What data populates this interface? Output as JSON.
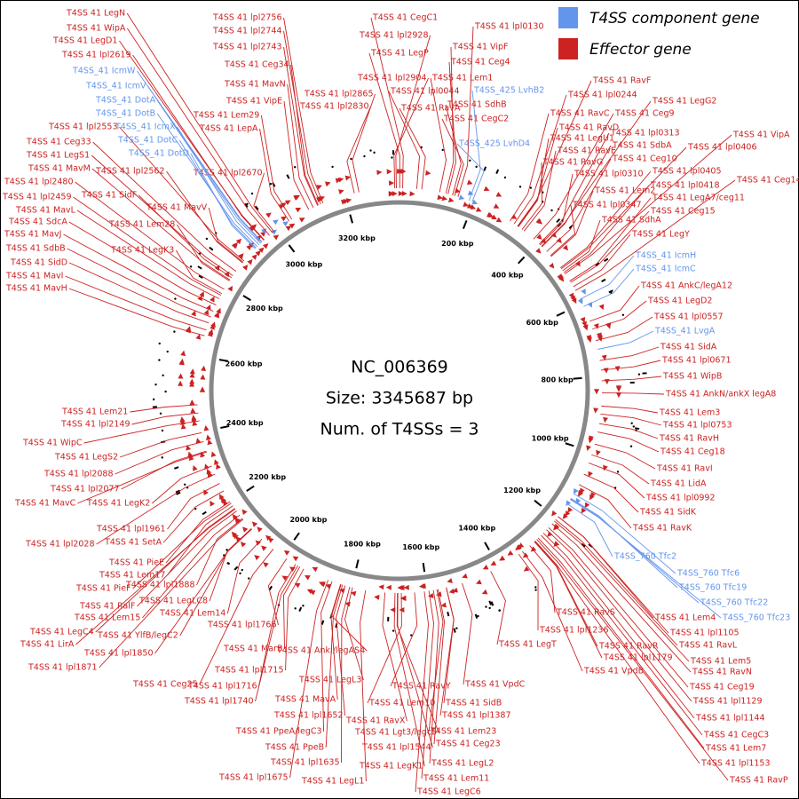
{
  "legend": [
    {
      "label": "T4SS component gene",
      "color": "#6495ed"
    },
    {
      "label": "Effector gene",
      "color": "#cc2222"
    }
  ],
  "center": {
    "accession": "NC_006369",
    "size": "Size: 3345687 bp",
    "systems": "Num. of T4SSs = 3"
  },
  "scale_labels": [
    "200 kbp",
    "400 kbp",
    "600 kbp",
    "800 kbp",
    "1000 kbp",
    "1200 kbp",
    "1400 kbp",
    "1600 kbp",
    "1800 kbp",
    "2000 kbp",
    "2200 kbp",
    "2400 kbp",
    "2600 kbp",
    "2800 kbp",
    "3000 kbp",
    "3200 kbp"
  ],
  "component_genes": [
    "T4SS_41 IcmW",
    "T4SS_41 IcmV",
    "T4SS_41 DotA",
    "T4SS_41 DotB",
    "T4SS_41 IcmX",
    "T4SS_41 DotC",
    "T4SS_41 DotD",
    "T4SS_425 LvhB2",
    "T4SS_425 LvhD4",
    "T4SS_41 IcmH",
    "T4SS_41 IcmC",
    "T4SS_41 LvgA",
    "T4SS_760 Tfc2",
    "T4SS_760 Tfc6",
    "T4SS_760 Tfc19",
    "T4SS_760 Tfc22",
    "T4SS_760 Tfc23"
  ],
  "effector_genes": [
    "T4SS 41 LegN",
    "T4SS 41 WipA",
    "T4SS 41 LegD1",
    "T4SS 41 lpl2619",
    "T4SS 41 lpl2553",
    "T4SS 41 Ceg33",
    "T4SS 41 LegS1",
    "T4SS 41 MavM",
    "T4SS 41 lpl2562",
    "T4SS 41 lpl2480",
    "T4SS 41 lpl2459",
    "T4SS 41 SidF",
    "T4SS 41 MavL",
    "T4SS 41 MavV",
    "T4SS 41 SdcA",
    "T4SS 41 Lem28",
    "T4SS 41 MavJ",
    "T4SS 41 SdbB",
    "T4SS 41 LegK3",
    "T4SS 41 SidD",
    "T4SS 41 MavI",
    "T4SS 41 MavH",
    "T4SS 41 lpl2756",
    "T4SS 41 lpl2744",
    "T4SS 41 lpl2743",
    "T4SS 41 Ceg34",
    "T4SS 41 MavN",
    "T4SS 41 VipE",
    "T4SS 41 Lem29",
    "T4SS 41 LepA",
    "T4SS 41 lpl2670",
    "T4SS 41 lpl2865",
    "T4SS 41 lpl2830",
    "T4SS 41 CegC1",
    "T4SS 41 lpl2928",
    "T4SS 41 LegP",
    "T4SS 41 lpl2904",
    "T4SS 41 lpl0044",
    "T4SS 41 RavA",
    "T4SS 41 lpl0130",
    "T4SS 41 VipF",
    "T4SS 41 Ceg4",
    "T4SS 41 Lem1",
    "T4SS 41 SdhB",
    "T4SS 41 CegC2",
    "T4SS 41 RavF",
    "T4SS 41 lpl0244",
    "T4SS 41 LegG2",
    "T4SS 41 RavC",
    "T4SS 41 Ceg9",
    "T4SS 41 RavD",
    "T4SS 41 lpl0313",
    "T4SS 41 LegU1",
    "T4SS 41 SdbA",
    "T4SS 41 VipA",
    "T4SS 41 lpl0406",
    "T4SS 41 RavE",
    "T4SS 41 Ceg10",
    "T4SS 41 RavG",
    "T4SS 41 lpl0405",
    "T4SS 41 lpl0310",
    "T4SS 41 lpl0418",
    "T4SS 41 Ceg14",
    "T4SS 41 Lem2",
    "T4SS 41 LegA7/ceg11",
    "T4SS 41 lpl0347",
    "T4SS 41 Ceg15",
    "T4SS 41 SdhA",
    "T4SS 41 LegY",
    "T4SS 41 AnkC/legA12",
    "T4SS 41 LegD2",
    "T4SS 41 lpl0557",
    "T4SS 41 SidA",
    "T4SS 41 lpl0671",
    "T4SS 41 WipB",
    "T4SS 41 AnkN/ankX legA8",
    "T4SS 41 Lem3",
    "T4SS 41 lpl0753",
    "T4SS 41 RavH",
    "T4SS 41 Ceg18",
    "T4SS 41 RavI",
    "T4SS 41 LidA",
    "T4SS 41 lpl0992",
    "T4SS 41 SidK",
    "T4SS 41 RavK",
    "T4SS 41 RavS",
    "T4SS 41 Lem4",
    "T4SS 41 lpl1105",
    "T4SS 41 lpl1236",
    "T4SS 41 RavR",
    "T4SS 41 RavL",
    "T4SS 41 lpl1179",
    "T4SS 41 Lem5",
    "T4SS 41 VpdB",
    "T4SS 41 RavN",
    "T4SS 41 Ceg19",
    "T4SS 41 lpl1129",
    "T4SS 41 lpl1144",
    "T4SS 41 CegC3",
    "T4SS 41 Lem7",
    "T4SS 41 lpl1153",
    "T4SS 41 RavP",
    "T4SS 41 LegT",
    "T4SS 41 RavY",
    "T4SS 41 VpdC",
    "T4SS 41 Lem10",
    "T4SS 41 SidB",
    "T4SS 41 lpl1387",
    "T4SS 41 RavX",
    "T4SS 41 Lgt3/legc5",
    "T4SS 41 Lem23",
    "T4SS 41 Ceg23",
    "T4SS 41 lpl1544",
    "T4SS 41 LegK1",
    "T4SS 41 LegL2",
    "T4SS 41 LegL1",
    "T4SS 41 Lem11",
    "T4SS 41 LegC6",
    "T4SS 41 AnkI/legAS4",
    "T4SS 41 LegL3",
    "T4SS 41 MavA",
    "T4SS 41 lpl1652",
    "T4SS 41 PpeA/legC3",
    "T4SS 41 PpeB",
    "T4SS 41 lpl1635",
    "T4SS 41 lpl1675",
    "T4SS 41 MarB",
    "T4SS 41 lpl1715",
    "T4SS 41 lpl1716",
    "T4SS 41 lpl1740",
    "T4SS 41 Ceg25",
    "T4SS 41 lpl1766",
    "T4SS 41 Lem14",
    "T4SS 41 LegLC8",
    "T4SS 41 YlfB/legC2",
    "T4SS 41 lpl1850",
    "T4SS 41 lpl1871",
    "T4SS 41 LegC4",
    "T4SS 41 LirA",
    "T4SS 41 Lem15",
    "T4SS 41 RalF",
    "T4SS 41 PieF",
    "T4SS 41 lpl1888",
    "T4SS 41 Lem17",
    "T4SS 41 PieE",
    "T4SS 41 SetA",
    "T4SS 41 lpl2028",
    "T4SS 41 lpl1961",
    "T4SS 41 MavC",
    "T4SS 41 LegK2",
    "T4SS 41 lpl2077",
    "T4SS 41 lpl2088",
    "T4SS 41 LegS2",
    "T4SS 41 WipC",
    "T4SS 41 lpl2149",
    "T4SS 41 Lem21"
  ]
}
